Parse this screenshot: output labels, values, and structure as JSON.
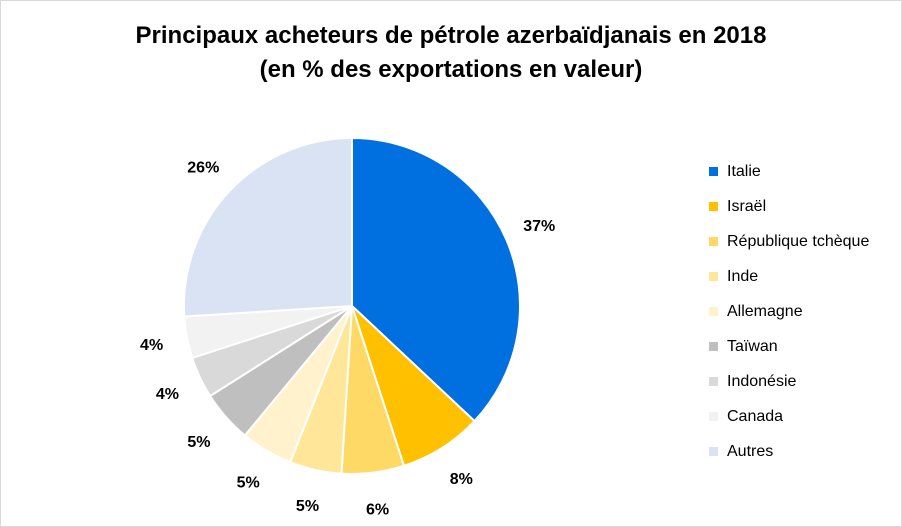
{
  "chart_data": {
    "type": "pie",
    "title": "Principaux acheteurs de pétrole azerbaïdjanais en 2018",
    "subtitle": "(en % des exportations en valeur)",
    "categories": [
      "Italie",
      "Israël",
      "République tchèque",
      "Inde",
      "Allemagne",
      "Taïwan",
      "Indonésie",
      "Canada",
      "Autres"
    ],
    "values": [
      37,
      8,
      6,
      5,
      5,
      5,
      4,
      4,
      26
    ],
    "data_labels": [
      "37%",
      "8%",
      "6%",
      "5%",
      "5%",
      "5%",
      "4%",
      "4%",
      "26%"
    ],
    "colors": [
      "#0070e0",
      "#ffc000",
      "#ffd966",
      "#ffe699",
      "#fff2cc",
      "#bfbfbf",
      "#d9d9d9",
      "#f2f2f2",
      "#dae3f3"
    ],
    "legend_position": "right"
  }
}
